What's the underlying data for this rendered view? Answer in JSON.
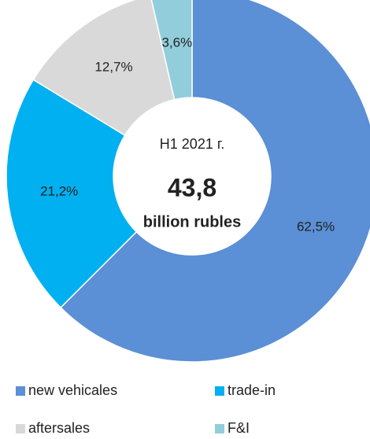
{
  "chart_data": {
    "type": "donut",
    "center_texts": [
      "H1 2021 г.",
      "43,8",
      "billion rubles"
    ],
    "categories": [
      "new vehicales",
      "trade-in",
      "aftersales",
      "F&I"
    ],
    "values": [
      62.5,
      21.2,
      12.7,
      3.6
    ],
    "value_labels": [
      "62,5%",
      "21,2%",
      "12,7%",
      "3,6%"
    ],
    "colors": [
      "#5b8fd6",
      "#00b0f0",
      "#d9d9d9",
      "#92cddc"
    ],
    "legend": "bottom"
  }
}
